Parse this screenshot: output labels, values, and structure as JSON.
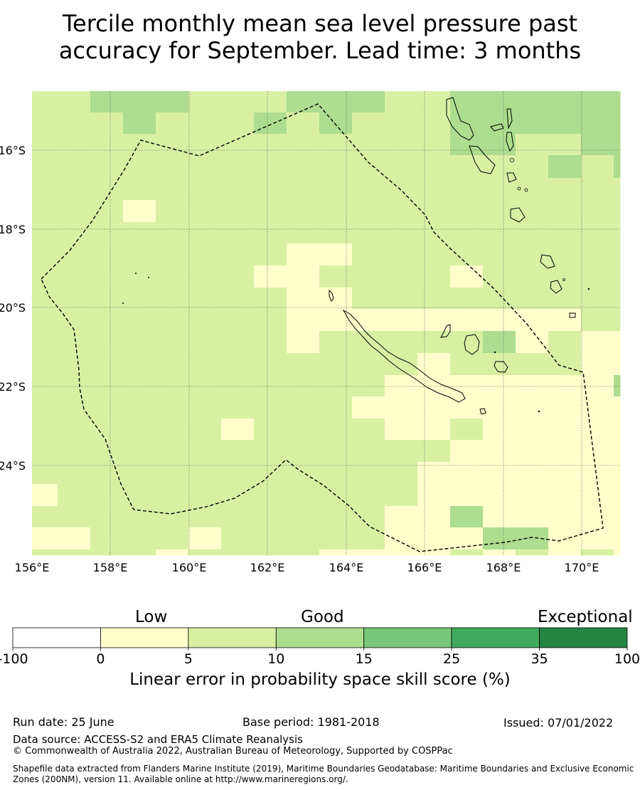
{
  "title_line1": "Tercile monthly mean sea level pressure past",
  "title_line2": "accuracy for September. Lead time: 3 months",
  "map": {
    "lon_ticks": [
      "156°E",
      "158°E",
      "160°E",
      "162°E",
      "164°E",
      "166°E",
      "168°E",
      "170°E"
    ],
    "lat_ticks": [
      "16°S",
      "18°S",
      "20°S",
      "22°S",
      "24°S"
    ]
  },
  "colorbar": {
    "category_labels": [
      "Low",
      "Good",
      "Exceptional"
    ],
    "tick_labels": [
      "-100",
      "0",
      "5",
      "10",
      "15",
      "25",
      "35",
      "100"
    ],
    "colors": [
      "#ffffff",
      "#ffffcc",
      "#d9f0a3",
      "#addd8e",
      "#78c679",
      "#41ab5d",
      "#238443"
    ],
    "title": "Linear error in probability space skill score (%)"
  },
  "footer": {
    "run_date": "Run date: 25 June",
    "base_period": "Base period: 1981-2018",
    "issued": "Issued: 07/01/2022",
    "data_source": "Data source: ACCESS-S2 and ERA5 Climate Reanalysis",
    "copyright": "© Commonwealth of Australia 2022, Australian Bureau of Meteorology, Supported by COSPPac",
    "shapefile_line1": "Shapefile data extracted from Flanders Marine Institute (2019), Maritime Boundaries Geodatabase: Maritime Boundaries and Exclusive Economic",
    "shapefile_line2": "Zones (200NM), version 11. Available online at http://www.marineregions.org/."
  }
}
